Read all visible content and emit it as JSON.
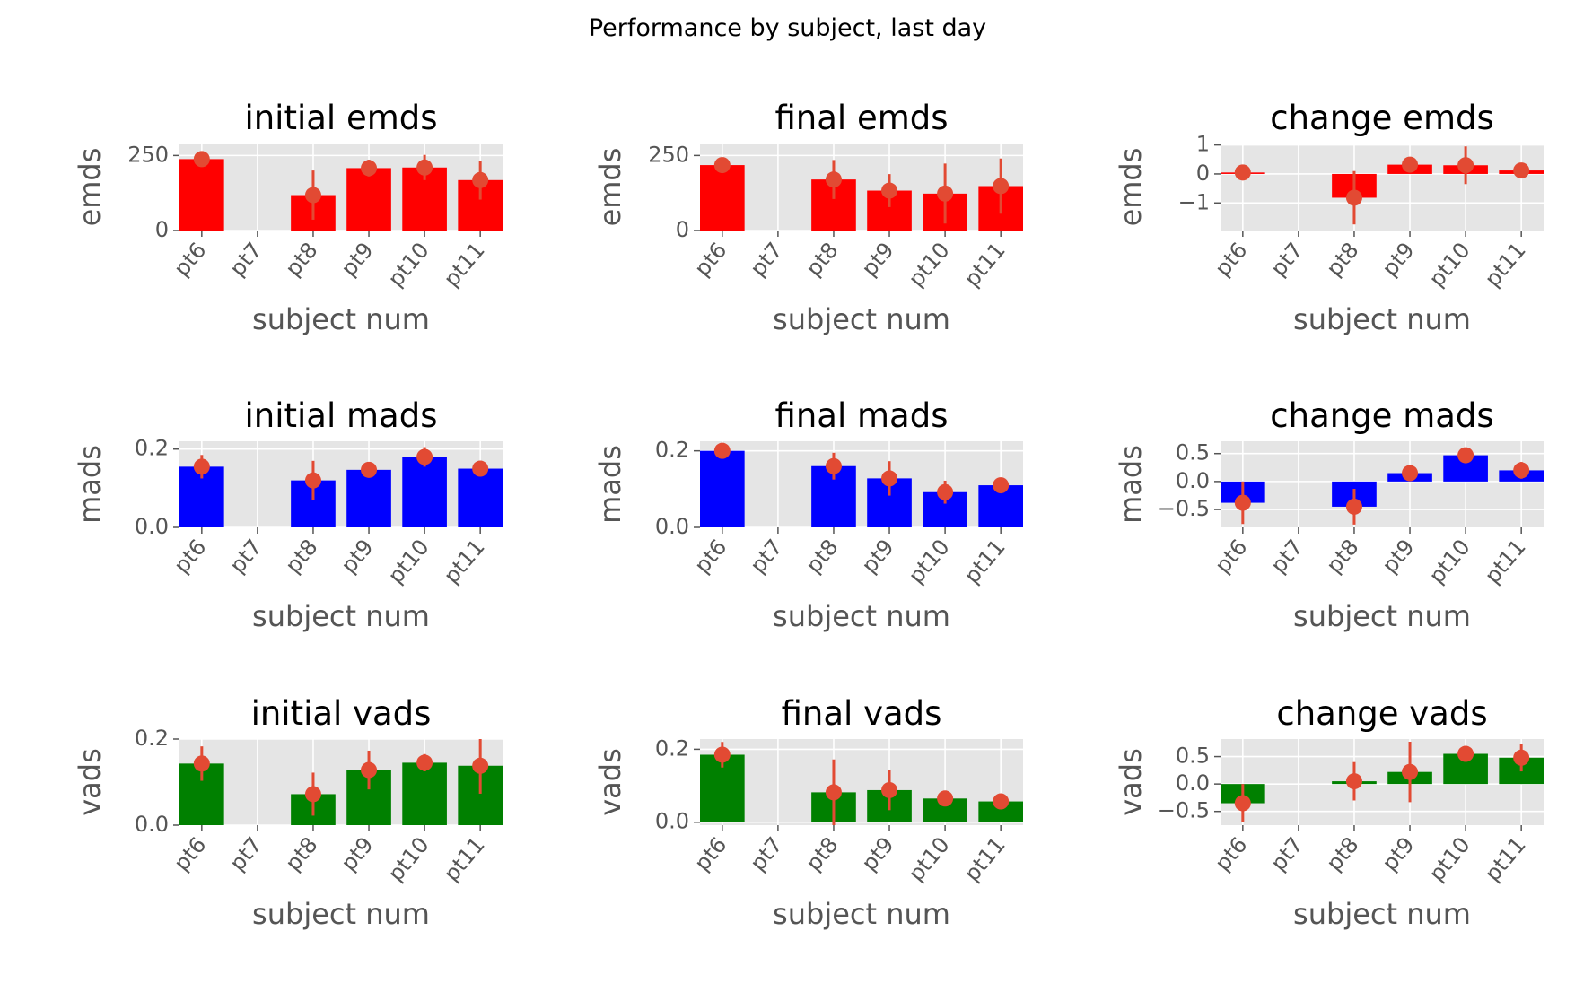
{
  "figure": {
    "title": "Performance by subject, last day"
  },
  "chart_data": [
    {
      "type": "bar",
      "title": "initial emds",
      "xlabel": "subject num",
      "ylabel": "emds",
      "categories": [
        "pt6",
        "pt7",
        "pt8",
        "pt9",
        "pt10",
        "pt11"
      ],
      "values": [
        238,
        null,
        118,
        208,
        210,
        168
      ],
      "errors": [
        8,
        null,
        82,
        28,
        42,
        65
      ],
      "ylim": [
        0,
        290
      ],
      "yticks": [
        0,
        250
      ],
      "ytick_labels": [
        "0",
        "250"
      ],
      "color": "#ff0000"
    },
    {
      "type": "bar",
      "title": "final emds",
      "xlabel": "subject num",
      "ylabel": "emds",
      "categories": [
        "pt6",
        "pt7",
        "pt8",
        "pt9",
        "pt10",
        "pt11"
      ],
      "values": [
        218,
        null,
        170,
        133,
        123,
        148
      ],
      "errors": [
        8,
        null,
        65,
        55,
        100,
        92
      ],
      "ylim": [
        0,
        290
      ],
      "yticks": [
        0,
        250
      ],
      "ytick_labels": [
        "0",
        "250"
      ],
      "color": "#ff0000"
    },
    {
      "type": "bar",
      "title": "change emds",
      "xlabel": "subject num",
      "ylabel": "emds",
      "categories": [
        "pt6",
        "pt7",
        "pt8",
        "pt9",
        "pt10",
        "pt11"
      ],
      "values": [
        0.05,
        null,
        -0.82,
        0.32,
        0.3,
        0.12
      ],
      "errors": [
        0.03,
        null,
        0.92,
        0.08,
        0.65,
        0.05
      ],
      "ylim": [
        -1.95,
        1.05
      ],
      "yticks": [
        -1,
        0,
        1
      ],
      "ytick_labels": [
        "−1",
        "0",
        "1"
      ],
      "color": "#ff0000"
    },
    {
      "type": "bar",
      "title": "initial mads",
      "xlabel": "subject num",
      "ylabel": "mads",
      "categories": [
        "pt6",
        "pt7",
        "pt8",
        "pt9",
        "pt10",
        "pt11"
      ],
      "values": [
        0.155,
        null,
        0.12,
        0.147,
        0.18,
        0.15
      ],
      "errors": [
        0.03,
        null,
        0.05,
        0.02,
        0.025,
        0.01
      ],
      "ylim": [
        0,
        0.22
      ],
      "yticks": [
        0,
        0.2
      ],
      "ytick_labels": [
        "0.0",
        "0.2"
      ],
      "color": "#0000ff"
    },
    {
      "type": "bar",
      "title": "final mads",
      "xlabel": "subject num",
      "ylabel": "mads",
      "categories": [
        "pt6",
        "pt7",
        "pt8",
        "pt9",
        "pt10",
        "pt11"
      ],
      "values": [
        0.2,
        null,
        0.16,
        0.128,
        0.092,
        0.11
      ],
      "errors": [
        0.005,
        null,
        0.035,
        0.045,
        0.03,
        0.01
      ],
      "ylim": [
        0,
        0.225
      ],
      "yticks": [
        0,
        0.2
      ],
      "ytick_labels": [
        "0.0",
        "0.2"
      ],
      "color": "#0000ff"
    },
    {
      "type": "bar",
      "title": "change mads",
      "xlabel": "subject num",
      "ylabel": "mads",
      "categories": [
        "pt6",
        "pt7",
        "pt8",
        "pt9",
        "pt10",
        "pt11"
      ],
      "values": [
        -0.38,
        null,
        -0.45,
        0.15,
        0.47,
        0.2
      ],
      "errors": [
        0.38,
        null,
        0.32,
        0.1,
        0.12,
        0.15
      ],
      "ylim": [
        -0.82,
        0.72
      ],
      "yticks": [
        -0.5,
        0,
        0.5
      ],
      "ytick_labels": [
        "−0.5",
        "0.0",
        "0.5"
      ],
      "color": "#0000ff"
    },
    {
      "type": "bar",
      "title": "initial vads",
      "xlabel": "subject num",
      "ylabel": "vads",
      "categories": [
        "pt6",
        "pt7",
        "pt8",
        "pt9",
        "pt10",
        "pt11"
      ],
      "values": [
        0.143,
        null,
        0.072,
        0.128,
        0.145,
        0.138
      ],
      "errors": [
        0.04,
        null,
        0.05,
        0.045,
        0.02,
        0.065
      ],
      "ylim": [
        0,
        0.2
      ],
      "yticks": [
        0,
        0.2
      ],
      "ytick_labels": [
        "0.0",
        "0.2"
      ],
      "color": "#008000"
    },
    {
      "type": "bar",
      "title": "final vads",
      "xlabel": "subject num",
      "ylabel": "vads",
      "categories": [
        "pt6",
        "pt7",
        "pt8",
        "pt9",
        "pt10",
        "pt11"
      ],
      "values": [
        0.185,
        null,
        0.082,
        0.088,
        0.065,
        0.057
      ],
      "errors": [
        0.035,
        null,
        0.09,
        0.055,
        0.01,
        0.008
      ],
      "ylim": [
        -0.008,
        0.228
      ],
      "yticks": [
        0,
        0.2
      ],
      "ytick_labels": [
        "0.0",
        "0.2"
      ],
      "color": "#008000"
    },
    {
      "type": "bar",
      "title": "change vads",
      "xlabel": "subject num",
      "ylabel": "vads",
      "categories": [
        "pt6",
        "pt7",
        "pt8",
        "pt9",
        "pt10",
        "pt11"
      ],
      "values": [
        -0.35,
        null,
        0.05,
        0.22,
        0.55,
        0.48
      ],
      "errors": [
        0.35,
        null,
        0.35,
        0.55,
        0.05,
        0.25
      ],
      "ylim": [
        -0.75,
        0.82
      ],
      "yticks": [
        -0.5,
        0,
        0.5
      ],
      "ytick_labels": [
        "−0.5",
        "0.0",
        "0.5"
      ],
      "color": "#008000"
    }
  ]
}
